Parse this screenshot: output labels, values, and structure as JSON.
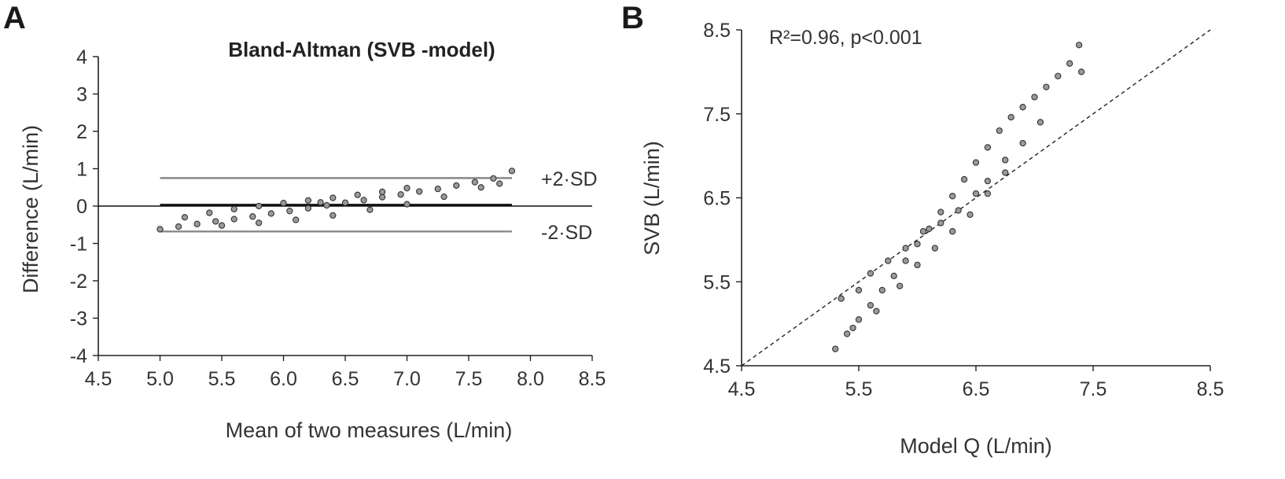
{
  "panels": {
    "a": {
      "label": "A"
    },
    "b": {
      "label": "B"
    }
  },
  "chart_data": [
    {
      "type": "scatter",
      "title": "Bland-Altman (SVB -model)",
      "xlabel": "Mean of two measures (L/min)",
      "ylabel": "Difference (L/min)",
      "xlim": [
        4.5,
        8.5
      ],
      "ylim": [
        -4,
        4
      ],
      "xticks": [
        "4.5",
        "5.0",
        "5.5",
        "6.0",
        "6.5",
        "7.0",
        "7.5",
        "8.0",
        "8.5"
      ],
      "xtick_values": [
        4.5,
        5.0,
        5.5,
        6.0,
        6.5,
        7.0,
        7.5,
        8.0,
        8.5
      ],
      "yticks": [
        "4",
        "3",
        "2",
        "1",
        "0",
        "-1",
        "-2",
        "-3",
        "-4"
      ],
      "ytick_values": [
        4,
        3,
        2,
        1,
        0,
        -1,
        -2,
        -3,
        -4
      ],
      "grid": false,
      "color": "#333333",
      "reference_lines": [
        {
          "name": "+2·SD",
          "y": 0.75,
          "x_range": [
            5.0,
            7.85
          ],
          "label": "+2·SD",
          "color": "#888888"
        },
        {
          "name": "mean",
          "y": 0.03,
          "x_range": [
            5.0,
            7.85
          ],
          "label": "",
          "color": "#111111"
        },
        {
          "name": "-2·SD",
          "y": -0.68,
          "x_range": [
            5.0,
            7.85
          ],
          "label": "-2·SD",
          "color": "#888888"
        }
      ],
      "series": [
        {
          "points": [
            [
              5.0,
              -0.62
            ],
            [
              5.15,
              -0.55
            ],
            [
              5.3,
              -0.48
            ],
            [
              5.45,
              -0.41
            ],
            [
              5.6,
              -0.35
            ],
            [
              5.75,
              -0.28
            ],
            [
              5.9,
              -0.2
            ],
            [
              6.05,
              -0.13
            ],
            [
              6.2,
              -0.06
            ],
            [
              6.35,
              0.02
            ],
            [
              6.5,
              0.09
            ],
            [
              6.65,
              0.16
            ],
            [
              6.8,
              0.24
            ],
            [
              6.95,
              0.31
            ],
            [
              7.1,
              0.39
            ],
            [
              7.25,
              0.46
            ],
            [
              7.4,
              0.55
            ],
            [
              7.55,
              0.64
            ],
            [
              7.7,
              0.74
            ],
            [
              7.85,
              0.94
            ],
            [
              5.2,
              -0.3
            ],
            [
              5.4,
              -0.18
            ],
            [
              5.6,
              -0.08
            ],
            [
              5.8,
              0.0
            ],
            [
              6.0,
              0.08
            ],
            [
              6.2,
              0.15
            ],
            [
              6.4,
              0.22
            ],
            [
              6.6,
              0.3
            ],
            [
              6.8,
              0.38
            ],
            [
              7.0,
              0.48
            ],
            [
              5.5,
              -0.52
            ],
            [
              5.8,
              -0.45
            ],
            [
              6.1,
              -0.37
            ],
            [
              6.4,
              -0.25
            ],
            [
              6.7,
              -0.1
            ],
            [
              7.0,
              0.05
            ],
            [
              7.3,
              0.25
            ],
            [
              7.6,
              0.5
            ],
            [
              7.75,
              0.6
            ],
            [
              6.3,
              0.1
            ]
          ]
        }
      ]
    },
    {
      "type": "scatter",
      "title": "",
      "xlabel": "Model Q (L/min)",
      "ylabel": "SVB (L/min)",
      "xlim": [
        4.5,
        8.5
      ],
      "ylim": [
        4.5,
        8.5
      ],
      "xticks": [
        "4.5",
        "5.5",
        "6.5",
        "7.5",
        "8.5"
      ],
      "xtick_values": [
        4.5,
        5.5,
        6.5,
        7.5,
        8.5
      ],
      "yticks": [
        "8.5",
        "7.5",
        "6.5",
        "5.5",
        "4.5"
      ],
      "ytick_values": [
        8.5,
        7.5,
        6.5,
        5.5,
        4.5
      ],
      "grid": false,
      "color": "#333333",
      "annotation": "R²=0.96, p<0.001",
      "identity_line": {
        "from": [
          4.5,
          4.5
        ],
        "to": [
          8.5,
          8.5
        ],
        "style": "dashed"
      },
      "series": [
        {
          "points": [
            [
              5.3,
              4.7
            ],
            [
              5.4,
              4.88
            ],
            [
              5.5,
              5.05
            ],
            [
              5.6,
              5.22
            ],
            [
              5.7,
              5.4
            ],
            [
              5.8,
              5.57
            ],
            [
              5.9,
              5.75
            ],
            [
              6.0,
              5.95
            ],
            [
              6.1,
              6.13
            ],
            [
              6.2,
              6.33
            ],
            [
              6.3,
              6.52
            ],
            [
              6.4,
              6.72
            ],
            [
              6.5,
              6.92
            ],
            [
              6.6,
              7.1
            ],
            [
              6.7,
              7.3
            ],
            [
              6.8,
              7.46
            ],
            [
              6.9,
              7.58
            ],
            [
              7.0,
              7.7
            ],
            [
              7.1,
              7.82
            ],
            [
              7.2,
              7.95
            ],
            [
              7.3,
              8.1
            ],
            [
              7.38,
              8.32
            ],
            [
              7.4,
              8.0
            ],
            [
              5.35,
              5.3
            ],
            [
              5.5,
              5.4
            ],
            [
              5.6,
              5.6
            ],
            [
              5.75,
              5.75
            ],
            [
              5.9,
              5.9
            ],
            [
              6.05,
              6.1
            ],
            [
              6.2,
              6.2
            ],
            [
              6.35,
              6.35
            ],
            [
              6.5,
              6.55
            ],
            [
              6.6,
              6.7
            ],
            [
              6.75,
              6.95
            ],
            [
              6.9,
              7.15
            ],
            [
              7.05,
              7.4
            ],
            [
              5.45,
              4.95
            ],
            [
              5.65,
              5.15
            ],
            [
              5.85,
              5.45
            ],
            [
              6.0,
              5.7
            ],
            [
              6.15,
              5.9
            ],
            [
              6.3,
              6.1
            ],
            [
              6.45,
              6.3
            ],
            [
              6.6,
              6.55
            ],
            [
              6.75,
              6.8
            ]
          ]
        }
      ]
    }
  ]
}
